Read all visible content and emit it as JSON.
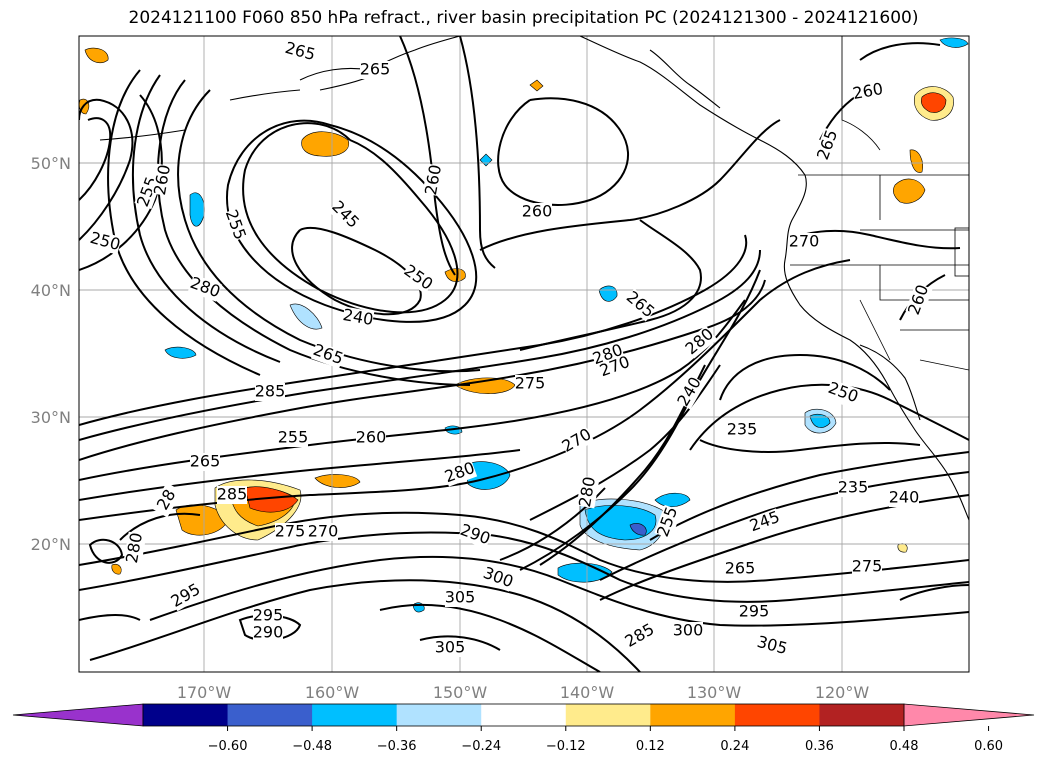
{
  "title": "2024121100 F060 850 hPa refract., river basin precipitation PC (2024121300 - 2024121600)",
  "map": {
    "lon_ticks": [
      "170°W",
      "160°W",
      "150°W",
      "140°W",
      "130°W",
      "120°W"
    ],
    "lat_ticks": [
      "50°N",
      "40°N",
      "30°N",
      "20°N"
    ]
  },
  "contour_labels": [
    {
      "t": "265"
    },
    {
      "t": "265"
    },
    {
      "t": "260"
    },
    {
      "t": "255"
    },
    {
      "t": "250"
    },
    {
      "t": "250"
    },
    {
      "t": "245"
    },
    {
      "t": "255"
    },
    {
      "t": "260"
    },
    {
      "t": "260"
    },
    {
      "t": "265"
    },
    {
      "t": "260"
    },
    {
      "t": "270"
    },
    {
      "t": "280"
    },
    {
      "t": "240"
    },
    {
      "t": "250"
    },
    {
      "t": "265"
    },
    {
      "t": "260"
    },
    {
      "t": "265"
    },
    {
      "t": "285"
    },
    {
      "t": "275"
    },
    {
      "t": "280"
    },
    {
      "t": "270"
    },
    {
      "t": "280"
    },
    {
      "t": "240"
    },
    {
      "t": "250"
    },
    {
      "t": "255"
    },
    {
      "t": "260"
    },
    {
      "t": "270"
    },
    {
      "t": "235"
    },
    {
      "t": "265"
    },
    {
      "t": "285"
    },
    {
      "t": "280"
    },
    {
      "t": "280"
    },
    {
      "t": "235"
    },
    {
      "t": "240"
    },
    {
      "t": "28"
    },
    {
      "t": "275"
    },
    {
      "t": "270"
    },
    {
      "t": "290"
    },
    {
      "t": "255"
    },
    {
      "t": "245"
    },
    {
      "t": "280"
    },
    {
      "t": "265"
    },
    {
      "t": "275"
    },
    {
      "t": "300"
    },
    {
      "t": "295"
    },
    {
      "t": "305"
    },
    {
      "t": "295"
    },
    {
      "t": "290"
    },
    {
      "t": "295"
    },
    {
      "t": "285"
    },
    {
      "t": "300"
    },
    {
      "t": "305"
    },
    {
      "t": "305"
    }
  ],
  "colorbar": {
    "ticks": [
      "-0.60",
      "-0.48",
      "-0.36",
      "-0.24",
      "-0.12",
      "0.12",
      "0.24",
      "0.36",
      "0.48",
      "0.60"
    ],
    "colors": [
      "#9932cc",
      "#00008b",
      "#3a5fcd",
      "#00bfff",
      "#b0e2ff",
      "#ffffff",
      "#ffeb8c",
      "#ffa500",
      "#ff4500",
      "#b22222",
      "#ff88aa"
    ]
  }
}
